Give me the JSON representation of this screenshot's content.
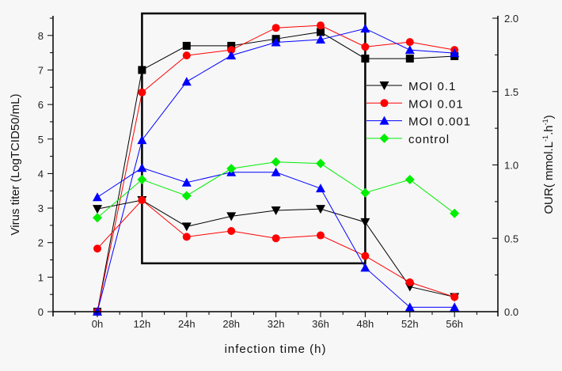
{
  "chart_data": {
    "type": "line",
    "title": "",
    "xlabel": "infection time (h)",
    "ylabel": "Virus titer (LogTCID50/mL)",
    "y2label_main": "OUR( mmol.L",
    "y2label_sup1": "-1",
    "y2label_mid": ".h",
    "y2label_sup2": "-1",
    "y2label_end": ")",
    "categories": [
      "0h",
      "12h",
      "24h",
      "28h",
      "32h",
      "36h",
      "48h",
      "52h",
      "56h"
    ],
    "ylim": [
      0,
      8.5
    ],
    "y2lim": [
      0,
      2.0
    ],
    "yticks": [
      "0",
      "1",
      "2",
      "3",
      "4",
      "5",
      "6",
      "7",
      "8"
    ],
    "y2ticks": [
      "0.0",
      "0.5",
      "1.0",
      "1.5",
      "2.0"
    ],
    "grid": false,
    "legend_position": "right-middle",
    "highlight_box": {
      "from": "12h",
      "to": "48h",
      "y_top": 8.5,
      "y_bottom": 1.4
    },
    "series": [
      {
        "name": "MOI 0.1 titer",
        "axis": "left",
        "marker": "square",
        "color": "#000000",
        "in_legend": false,
        "values": [
          0,
          7.0,
          7.7,
          7.7,
          7.9,
          8.1,
          7.33,
          7.33,
          7.4
        ]
      },
      {
        "name": "MOI 0.01 titer",
        "axis": "left",
        "marker": "circle",
        "color": "#ff0000",
        "in_legend": false,
        "values": [
          0,
          6.35,
          7.42,
          7.58,
          8.22,
          8.29,
          7.67,
          7.81,
          7.58
        ]
      },
      {
        "name": "MOI 0.001 titer",
        "axis": "left",
        "marker": "triangle-up",
        "color": "#0000ff",
        "in_legend": false,
        "values": [
          0,
          4.97,
          6.66,
          7.42,
          7.8,
          7.88,
          8.2,
          7.58,
          7.49
        ]
      },
      {
        "name": "MOI 0.1",
        "axis": "right",
        "marker": "triangle-down",
        "color": "#000000",
        "in_legend": true,
        "values": [
          0.7,
          0.76,
          0.58,
          0.65,
          0.69,
          0.7,
          0.61,
          0.17,
          0.1
        ]
      },
      {
        "name": "MOI 0.01",
        "axis": "right",
        "marker": "circle",
        "color": "#ff0000",
        "in_legend": true,
        "values": [
          0.43,
          0.76,
          0.51,
          0.55,
          0.5,
          0.52,
          0.38,
          0.2,
          0.1
        ]
      },
      {
        "name": "MOI 0.001",
        "axis": "right",
        "marker": "triangle-up",
        "color": "#0000ff",
        "in_legend": true,
        "values": [
          0.78,
          0.98,
          0.88,
          0.95,
          0.95,
          0.84,
          0.3,
          0.03,
          0.03
        ]
      },
      {
        "name": "control",
        "axis": "right",
        "marker": "diamond",
        "color": "#00ee00",
        "in_legend": true,
        "values": [
          0.64,
          0.9,
          0.79,
          0.975,
          1.02,
          1.01,
          0.81,
          0.9,
          0.67
        ]
      }
    ]
  }
}
